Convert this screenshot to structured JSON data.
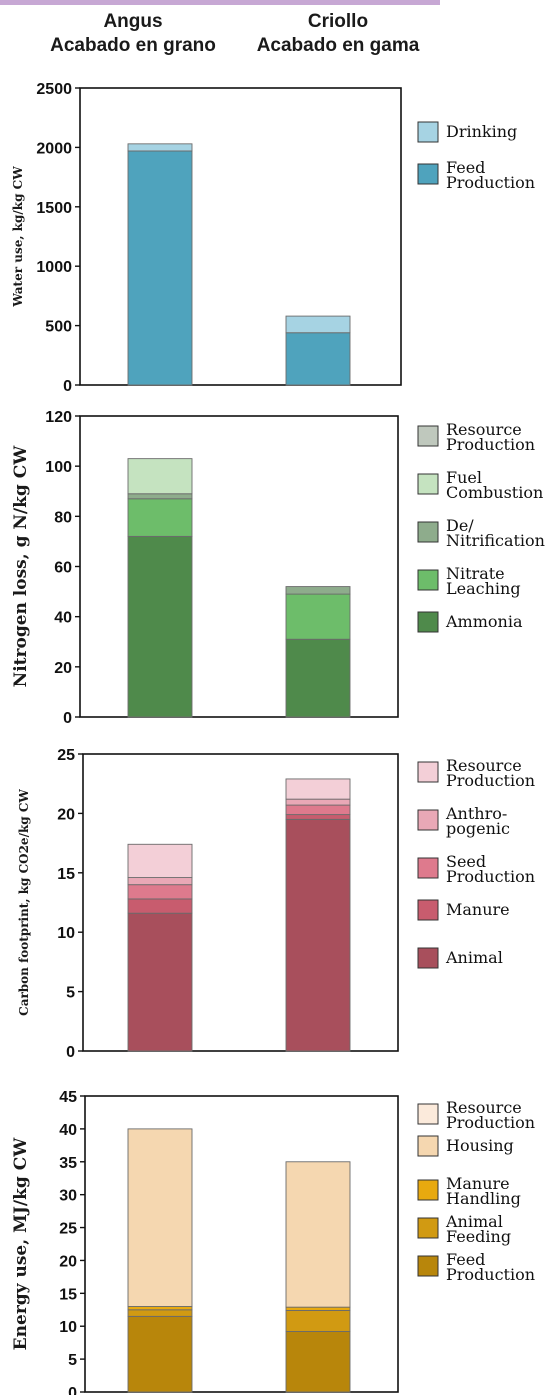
{
  "headers": {
    "angus_line1": "Angus",
    "angus_line2": "Acabado en grano",
    "criollo_line1": "Criollo",
    "criollo_line2": "Acabado en gama"
  },
  "chart_data": [
    {
      "type": "bar",
      "stacked": true,
      "categories": [
        "Angus Acabado en grano",
        "Criollo Acabado en gama"
      ],
      "ylabel": "Water use, kg/kg CW",
      "ylim": [
        0,
        2500
      ],
      "yticks": [
        0,
        500,
        1000,
        1500,
        2000,
        2500
      ],
      "grid": false,
      "legend_position": "right",
      "series": [
        {
          "name": "Feed Production",
          "label_lines": [
            "Feed",
            "Production"
          ],
          "color": "#4fa3bd",
          "values": [
            1970,
            440
          ]
        },
        {
          "name": "Drinking",
          "label_lines": [
            "Drinking"
          ],
          "color": "#a6d3e3",
          "values": [
            60,
            140
          ]
        }
      ]
    },
    {
      "type": "bar",
      "stacked": true,
      "categories": [
        "Angus Acabado en grano",
        "Criollo Acabado en gama"
      ],
      "ylabel": "Nitrogen loss, g N/kg CW",
      "ylim": [
        0,
        120
      ],
      "yticks": [
        0,
        20,
        40,
        60,
        80,
        100,
        120
      ],
      "grid": false,
      "legend_position": "right",
      "series": [
        {
          "name": "Ammonia",
          "label_lines": [
            "Ammonia"
          ],
          "color": "#4f8a4b",
          "values": [
            72,
            31
          ]
        },
        {
          "name": "Nitrate Leaching",
          "label_lines": [
            "Nitrate",
            "Leaching"
          ],
          "color": "#6dbd6a",
          "values": [
            15,
            18
          ]
        },
        {
          "name": "De/Nitrification",
          "label_lines": [
            "De/",
            "Nitrification"
          ],
          "color": "#8eac8c",
          "values": [
            2,
            3
          ]
        },
        {
          "name": "Fuel Combustion",
          "label_lines": [
            "Fuel",
            "Combustion"
          ],
          "color": "#c5e3c0",
          "values": [
            14,
            0
          ]
        },
        {
          "name": "Resource Production",
          "label_lines": [
            "Resource",
            "Production"
          ],
          "color": "#bfc8bd",
          "values": [
            0,
            0
          ]
        }
      ]
    },
    {
      "type": "bar",
      "stacked": true,
      "categories": [
        "Angus Acabado en grano",
        "Criollo Acabado en gama"
      ],
      "ylabel": "Carbon footprint, kg CO2e/kg CW",
      "ylim": [
        0,
        25
      ],
      "yticks": [
        0,
        5,
        10,
        15,
        20,
        25
      ],
      "grid": false,
      "legend_position": "right",
      "series": [
        {
          "name": "Animal",
          "label_lines": [
            "Animal"
          ],
          "color": "#a84f5c",
          "values": [
            11.6,
            19.5
          ]
        },
        {
          "name": "Manure",
          "label_lines": [
            "Manure"
          ],
          "color": "#c85c6e",
          "values": [
            1.2,
            0.4
          ]
        },
        {
          "name": "Seed Production",
          "label_lines": [
            "Seed",
            "Production"
          ],
          "color": "#de7a8d",
          "values": [
            1.2,
            0.8
          ]
        },
        {
          "name": "Anthropogenic",
          "label_lines": [
            "Anthro-",
            "pogenic"
          ],
          "color": "#e9a8b6",
          "values": [
            0.6,
            0.5
          ]
        },
        {
          "name": "Resource Production",
          "label_lines": [
            "Resource",
            "Production"
          ],
          "color": "#f3cfd7",
          "values": [
            2.8,
            1.7
          ]
        }
      ]
    },
    {
      "type": "bar",
      "stacked": true,
      "categories": [
        "Angus Acabado en grano",
        "Criollo Acabado en gama"
      ],
      "ylabel": "Energy use, MJ/kg CW",
      "ylim": [
        0,
        45
      ],
      "yticks": [
        0,
        5,
        10,
        15,
        20,
        25,
        30,
        35,
        40,
        45
      ],
      "grid": false,
      "legend_position": "right",
      "series": [
        {
          "name": "Feed Production",
          "label_lines": [
            "Feed",
            "Production"
          ],
          "color": "#b8860b",
          "values": [
            11.5,
            9.2
          ]
        },
        {
          "name": "Animal Feeding",
          "label_lines": [
            "Animal",
            "Feeding"
          ],
          "color": "#d19a12",
          "values": [
            1.0,
            3.2
          ]
        },
        {
          "name": "Manure Handling",
          "label_lines": [
            "Manure",
            "Handling"
          ],
          "color": "#e8a90f",
          "values": [
            0.5,
            0.5
          ]
        },
        {
          "name": "Housing",
          "label_lines": [
            "Housing"
          ],
          "color": "#f5d7b0",
          "values": [
            27.0,
            22.1
          ]
        },
        {
          "name": "Resource Production",
          "label_lines": [
            "Resource",
            "Production"
          ],
          "color": "#fbeadb",
          "values": [
            0,
            0
          ]
        }
      ]
    }
  ]
}
